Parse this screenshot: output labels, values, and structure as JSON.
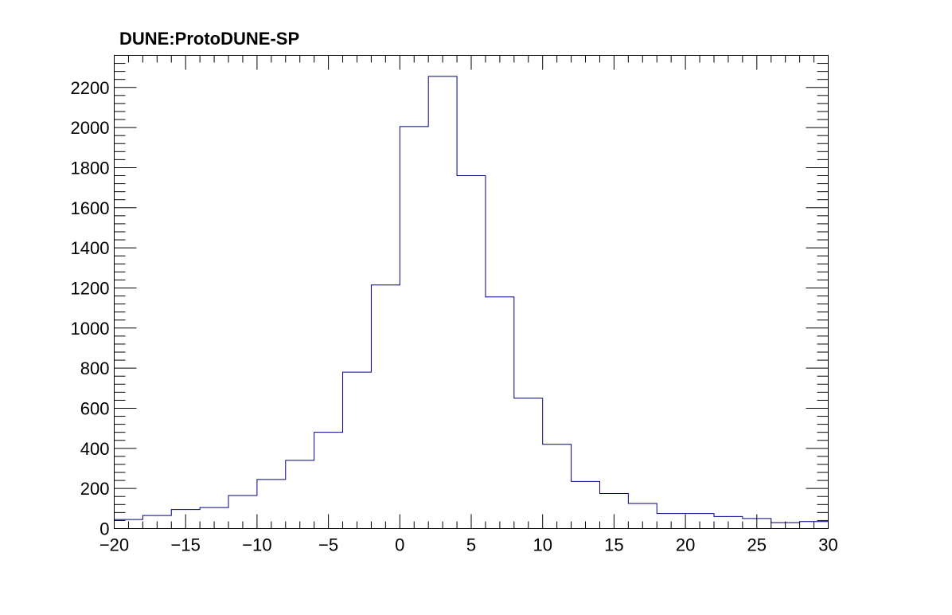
{
  "chart_data": {
    "type": "histogram",
    "title": "DUNE:ProtoDUNE-SP",
    "xlabel": "",
    "ylabel": "",
    "xlim": [
      -20,
      30
    ],
    "ylim": [
      0,
      2360
    ],
    "bin_width": 2,
    "bin_edges": [
      -20,
      -18,
      -16,
      -14,
      -12,
      -10,
      -8,
      -6,
      -4,
      -2,
      0,
      2,
      4,
      6,
      8,
      10,
      12,
      14,
      16,
      18,
      20,
      22,
      24,
      26,
      28,
      30
    ],
    "values": [
      45,
      65,
      95,
      105,
      165,
      245,
      340,
      480,
      780,
      1215,
      2005,
      2255,
      1760,
      1155,
      650,
      420,
      235,
      175,
      125,
      75,
      75,
      60,
      50,
      30,
      35
    ],
    "x_ticks": [
      -20,
      -15,
      -10,
      -5,
      0,
      5,
      10,
      15,
      20,
      25,
      30
    ],
    "x_tick_labels": [
      "−20",
      "−15",
      "−10",
      "−5",
      "0",
      "5",
      "10",
      "15",
      "20",
      "25",
      "30"
    ],
    "y_ticks": [
      0,
      200,
      400,
      600,
      800,
      1000,
      1200,
      1400,
      1600,
      1800,
      2000,
      2200
    ],
    "y_tick_labels": [
      "0",
      "200",
      "400",
      "600",
      "800",
      "1000",
      "1200",
      "1400",
      "1600",
      "1800",
      "2000",
      "2200"
    ],
    "grid": false,
    "legend": "none",
    "line_color": "#000080",
    "axis_color": "#000000"
  }
}
